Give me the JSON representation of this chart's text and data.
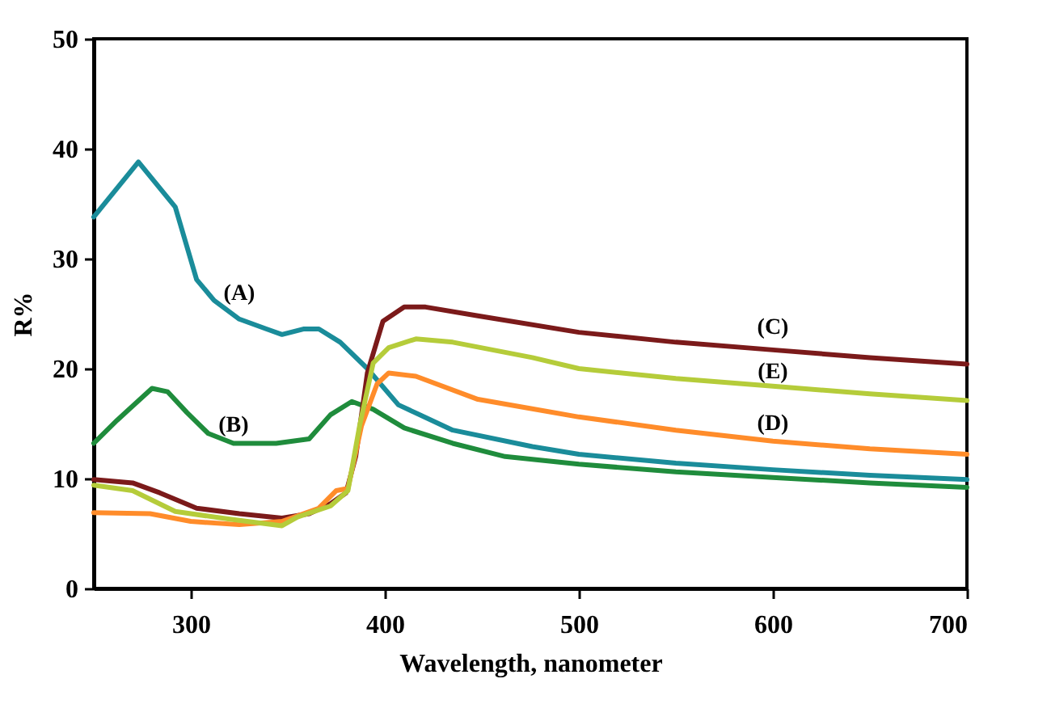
{
  "chart_data": {
    "type": "line",
    "xlabel": "Wavelength, nanometer",
    "ylabel": "R%",
    "xlim": [
      250,
      700
    ],
    "xticks": [
      300,
      400,
      500,
      600,
      700
    ],
    "ylim": [
      0,
      50
    ],
    "yticks": [
      0,
      10,
      20,
      30,
      40,
      50
    ],
    "grid": false,
    "marker": "none",
    "line_style": "solid",
    "series": [
      {
        "name": "(A)",
        "color": "#1a8c9a",
        "x": [
          250,
          273,
          292,
          303,
          312,
          325,
          339,
          347,
          358,
          366,
          377,
          391,
          407,
          435,
          476,
          500,
          550,
          600,
          650,
          700
        ],
        "values": [
          33.8,
          38.8,
          34.7,
          28.1,
          26.2,
          24.5,
          23.6,
          23.1,
          23.6,
          23.6,
          22.4,
          20.0,
          16.7,
          14.4,
          12.9,
          12.2,
          11.4,
          10.8,
          10.3,
          9.9
        ]
      },
      {
        "name": "(B)",
        "color": "#1f8c3c",
        "x": [
          250,
          262,
          280,
          288,
          298,
          309,
          322,
          344,
          361,
          372,
          383,
          394,
          410,
          435,
          462,
          500,
          550,
          600,
          650,
          700
        ],
        "values": [
          13.2,
          15.3,
          18.2,
          17.9,
          16.0,
          14.1,
          13.2,
          13.2,
          13.6,
          15.8,
          17.0,
          16.3,
          14.6,
          13.2,
          12.0,
          11.3,
          10.6,
          10.1,
          9.6,
          9.2
        ]
      },
      {
        "name": "(C)",
        "color": "#7b1a1a",
        "x": [
          250,
          270,
          284,
          303,
          325,
          347,
          361,
          372,
          380,
          385,
          391,
          399,
          410,
          421,
          448,
          500,
          550,
          600,
          650,
          700
        ],
        "values": [
          9.9,
          9.6,
          8.7,
          7.3,
          6.8,
          6.4,
          6.8,
          7.7,
          8.7,
          12.0,
          19.6,
          24.3,
          25.6,
          25.6,
          24.8,
          23.3,
          22.4,
          21.7,
          21.0,
          20.4
        ]
      },
      {
        "name": "(D)",
        "color": "#ff8c2a",
        "x": [
          250,
          279,
          300,
          325,
          347,
          366,
          375,
          381,
          388,
          396,
          402,
          416,
          448,
          500,
          550,
          600,
          650,
          700
        ],
        "values": [
          6.9,
          6.8,
          6.1,
          5.8,
          6.1,
          7.3,
          8.9,
          9.1,
          14.8,
          18.6,
          19.6,
          19.3,
          17.2,
          15.6,
          14.4,
          13.4,
          12.7,
          12.2
        ]
      },
      {
        "name": "(E)",
        "color": "#b5cc3a",
        "x": [
          250,
          270,
          292,
          320,
          347,
          355,
          372,
          381,
          387,
          394,
          402,
          416,
          435,
          476,
          500,
          550,
          600,
          650,
          700
        ],
        "values": [
          9.4,
          8.9,
          7.0,
          6.3,
          5.7,
          6.5,
          7.5,
          8.9,
          14.8,
          20.5,
          21.9,
          22.7,
          22.4,
          21.0,
          20.0,
          19.1,
          18.4,
          17.7,
          17.1
        ]
      }
    ]
  }
}
